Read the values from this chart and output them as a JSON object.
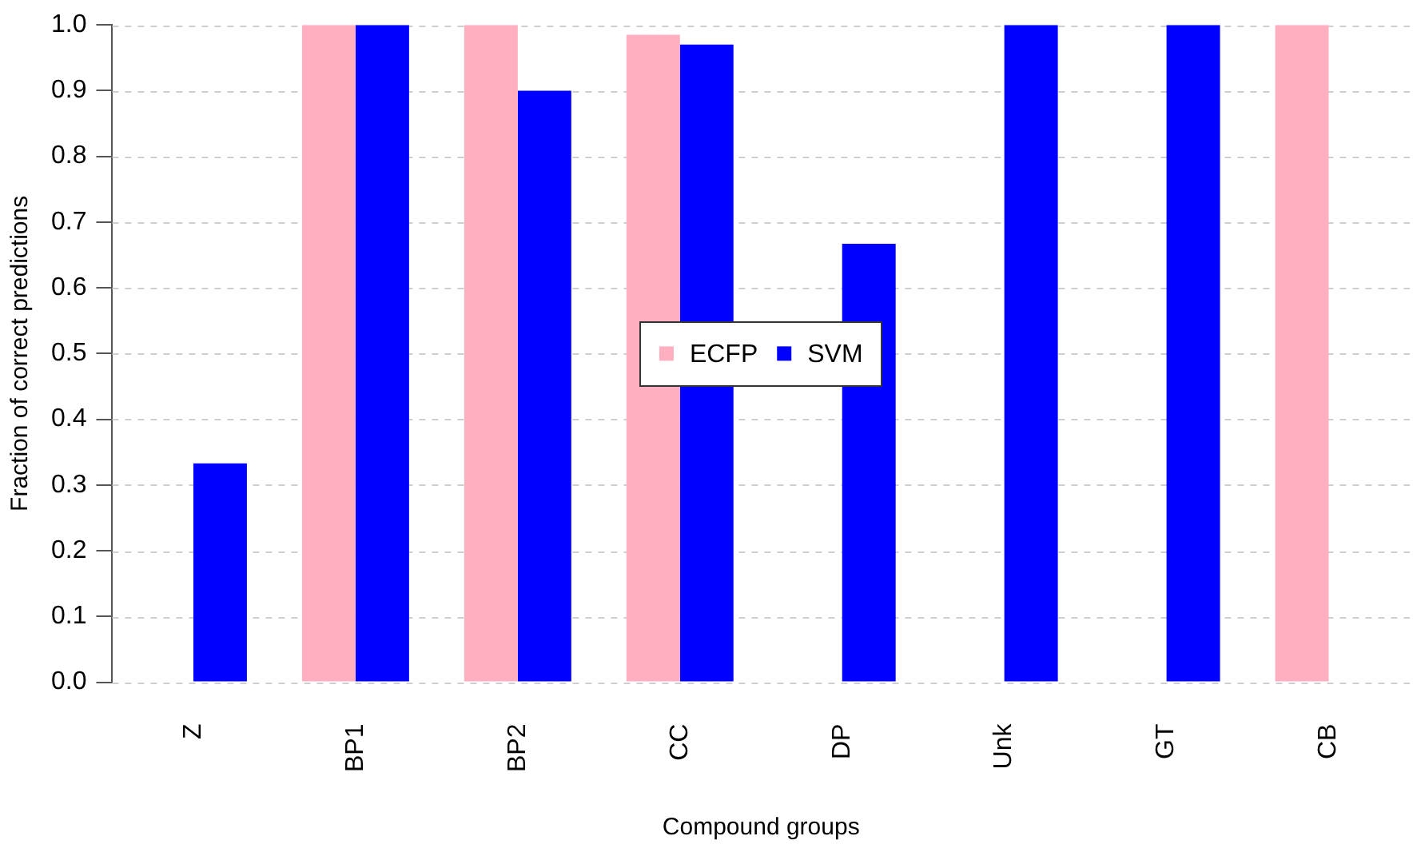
{
  "chart_data": {
    "type": "bar",
    "xlabel": "Compound groups",
    "ylabel": "Fraction of correct predictions",
    "categories": [
      "Z",
      "BP1",
      "BP2",
      "CC",
      "DP",
      "Unk",
      "GT",
      "CB"
    ],
    "series": [
      {
        "name": "ECFP",
        "color": "#ffafc0",
        "values": [
          0,
          1,
          1,
          0.985,
          0,
          0,
          0,
          1
        ]
      },
      {
        "name": "SVM",
        "color": "#0000ff",
        "values": [
          0.333,
          1,
          0.9,
          0.97,
          0.667,
          1,
          1,
          0
        ]
      }
    ],
    "ylim": [
      0,
      1
    ],
    "yticks": [
      {
        "value": 0,
        "label": "0.0"
      },
      {
        "value": 0.1,
        "label": "0.1"
      },
      {
        "value": 0.2,
        "label": "0.2"
      },
      {
        "value": 0.3,
        "label": "0.3"
      },
      {
        "value": 0.4,
        "label": "0.4"
      },
      {
        "value": 0.5,
        "label": "0.5"
      },
      {
        "value": 0.6,
        "label": "0.6"
      },
      {
        "value": 0.7,
        "label": "0.7"
      },
      {
        "value": 0.8,
        "label": "0.8"
      },
      {
        "value": 0.9,
        "label": "0.9"
      },
      {
        "value": 1,
        "label": "1.0"
      }
    ],
    "grid": "y",
    "legend": "center"
  }
}
